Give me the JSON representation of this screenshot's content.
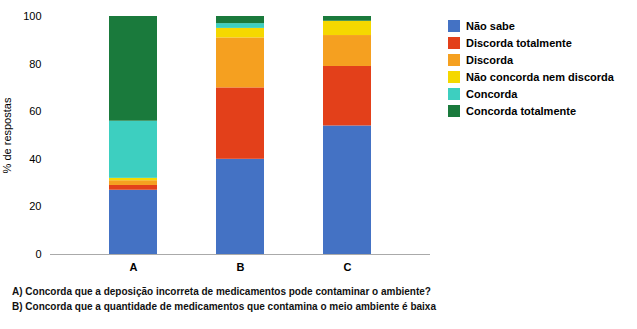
{
  "chart_data": {
    "type": "bar",
    "stacked": true,
    "categories": [
      "A",
      "B",
      "C"
    ],
    "series": [
      {
        "name": "Não sabe",
        "color": "#4472C4",
        "values": [
          27,
          40,
          54
        ]
      },
      {
        "name": "Discorda totalmente",
        "color": "#E3401A",
        "values": [
          2,
          30,
          25
        ]
      },
      {
        "name": "Discorda",
        "color": "#F5A020",
        "values": [
          2,
          21,
          13
        ]
      },
      {
        "name": "Não concorda nem discorda",
        "color": "#F5D800",
        "values": [
          1,
          4,
          6
        ]
      },
      {
        "name": "Concorda",
        "color": "#3DCFC0",
        "values": [
          24,
          2,
          0
        ]
      },
      {
        "name": "Concorda totalmente",
        "color": "#1A7A3C",
        "values": [
          44,
          3,
          2
        ]
      }
    ],
    "ylabel": "% de respostas",
    "ylim": [
      0,
      100
    ],
    "yticks": [
      0,
      20,
      40,
      60,
      80,
      100
    ],
    "grid": false,
    "legend": "right",
    "annotations": [
      "A) Concorda que a deposição incorreta de medicamentos pode contaminar o ambiente?",
      "B) Concorda que a quantidade de medicamentos que contamina o meio ambiente é baixa"
    ]
  }
}
